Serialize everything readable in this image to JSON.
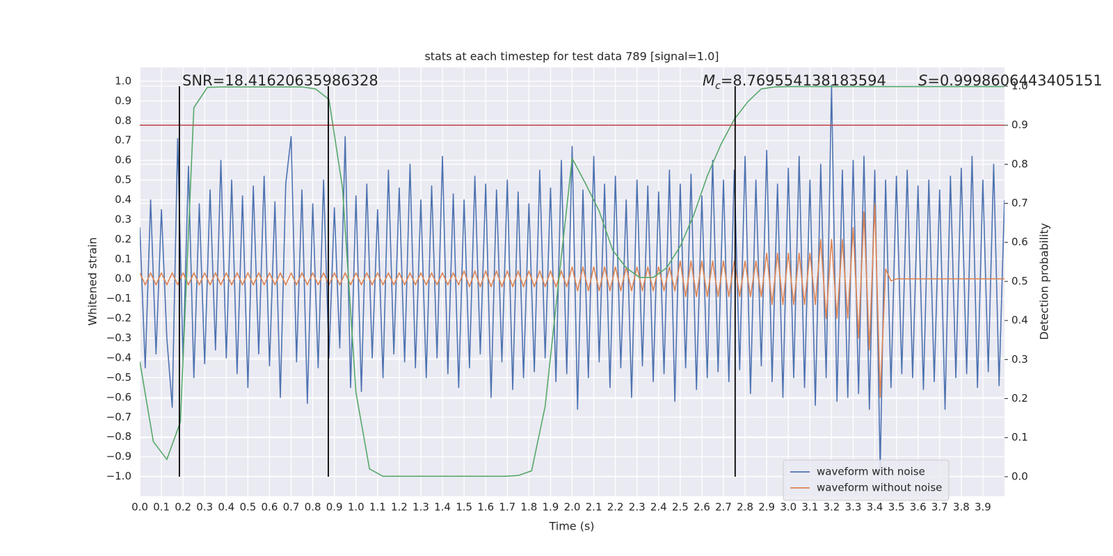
{
  "chart_data": {
    "type": "line",
    "title": "stats at each timestep for test data 789 [signal=1.0]",
    "xlabel": "Time (s)",
    "ylabel": "Whitened strain",
    "y2label": "Detection probability",
    "background": "#eaeaf2",
    "grid": true,
    "legend": "lower right",
    "xlim": [
      0,
      4.0
    ],
    "ylim": [
      -1.1,
      1.07
    ],
    "y2lim": [
      -0.05,
      1.048
    ],
    "xticks": [
      {
        "value": 0,
        "label": "0.0"
      },
      {
        "value": 0.1,
        "label": "0.1"
      },
      {
        "value": 0.2,
        "label": "0.2"
      },
      {
        "value": 0.3,
        "label": "0.3"
      },
      {
        "value": 0.4,
        "label": "0.4"
      },
      {
        "value": 0.5,
        "label": "0.5"
      },
      {
        "value": 0.6,
        "label": "0.6"
      },
      {
        "value": 0.7,
        "label": "0.7"
      },
      {
        "value": 0.8,
        "label": "0.8"
      },
      {
        "value": 0.9,
        "label": "0.9"
      },
      {
        "value": 1.0,
        "label": "1.0"
      },
      {
        "value": 1.1,
        "label": "1.1"
      },
      {
        "value": 1.2,
        "label": "1.2"
      },
      {
        "value": 1.3,
        "label": "1.3"
      },
      {
        "value": 1.4,
        "label": "1.4"
      },
      {
        "value": 1.5,
        "label": "1.5"
      },
      {
        "value": 1.6,
        "label": "1.6"
      },
      {
        "value": 1.7,
        "label": "1.7"
      },
      {
        "value": 1.8,
        "label": "1.8"
      },
      {
        "value": 1.9,
        "label": "1.9"
      },
      {
        "value": 2.0,
        "label": "2.0"
      },
      {
        "value": 2.1,
        "label": "2.1"
      },
      {
        "value": 2.2,
        "label": "2.2"
      },
      {
        "value": 2.3,
        "label": "2.3"
      },
      {
        "value": 2.4,
        "label": "2.4"
      },
      {
        "value": 2.5,
        "label": "2.5"
      },
      {
        "value": 2.6,
        "label": "2.6"
      },
      {
        "value": 2.7,
        "label": "2.7"
      },
      {
        "value": 2.8,
        "label": "2.8"
      },
      {
        "value": 2.9,
        "label": "2.9"
      },
      {
        "value": 3.0,
        "label": "3.0"
      },
      {
        "value": 3.1,
        "label": "3.1"
      },
      {
        "value": 3.2,
        "label": "3.2"
      },
      {
        "value": 3.3,
        "label": "3.3"
      },
      {
        "value": 3.4,
        "label": "3.4"
      },
      {
        "value": 3.5,
        "label": "3.5"
      },
      {
        "value": 3.6,
        "label": "3.6"
      },
      {
        "value": 3.7,
        "label": "3.7"
      },
      {
        "value": 3.8,
        "label": "3.8"
      },
      {
        "value": 3.9,
        "label": "3.9"
      }
    ],
    "yticks": [
      {
        "value": 1.0,
        "label": "1.0"
      },
      {
        "value": 0.9,
        "label": "0.9"
      },
      {
        "value": 0.8,
        "label": "0.8"
      },
      {
        "value": 0.7,
        "label": "0.7"
      },
      {
        "value": 0.6,
        "label": "0.6"
      },
      {
        "value": 0.5,
        "label": "0.5"
      },
      {
        "value": 0.4,
        "label": "0.4"
      },
      {
        "value": 0.3,
        "label": "0.3"
      },
      {
        "value": 0.2,
        "label": "0.2"
      },
      {
        "value": 0.1,
        "label": "0.1"
      },
      {
        "value": 0,
        "label": "0.0"
      },
      {
        "value": -0.1,
        "label": "−0.1"
      },
      {
        "value": -0.2,
        "label": "−0.2"
      },
      {
        "value": -0.3,
        "label": "−0.3"
      },
      {
        "value": -0.4,
        "label": "−0.4"
      },
      {
        "value": -0.5,
        "label": "−0.5"
      },
      {
        "value": -0.6,
        "label": "−0.6"
      },
      {
        "value": -0.7,
        "label": "−0.7"
      },
      {
        "value": -0.8,
        "label": "−0.8"
      },
      {
        "value": -0.9,
        "label": "−0.9"
      },
      {
        "value": -1.0,
        "label": "−1.0"
      }
    ],
    "y2ticks": [
      {
        "value": 1.0,
        "label": "1.0"
      },
      {
        "value": 0.9,
        "label": "0.9"
      },
      {
        "value": 0.8,
        "label": "0.8"
      },
      {
        "value": 0.7,
        "label": "0.7"
      },
      {
        "value": 0.6,
        "label": "0.6"
      },
      {
        "value": 0.5,
        "label": "0.5"
      },
      {
        "value": 0.4,
        "label": "0.4"
      },
      {
        "value": 0.3,
        "label": "0.3"
      },
      {
        "value": 0.2,
        "label": "0.2"
      },
      {
        "value": 0.1,
        "label": "0.1"
      },
      {
        "value": 0,
        "label": "0.0"
      }
    ],
    "x": [
      0,
      0.025,
      0.05,
      0.075,
      0.1,
      0.125,
      0.15,
      0.175,
      0.2,
      0.225,
      0.25,
      0.275,
      0.3,
      0.325,
      0.35,
      0.375,
      0.4,
      0.425,
      0.45,
      0.475,
      0.5,
      0.525,
      0.55,
      0.575,
      0.6,
      0.625,
      0.65,
      0.675,
      0.7,
      0.725,
      0.75,
      0.775,
      0.8,
      0.825,
      0.85,
      0.875,
      0.9,
      0.925,
      0.95,
      0.975,
      1.0,
      1.025,
      1.05,
      1.075,
      1.1,
      1.125,
      1.15,
      1.175,
      1.2,
      1.225,
      1.25,
      1.275,
      1.3,
      1.325,
      1.35,
      1.375,
      1.4,
      1.425,
      1.45,
      1.475,
      1.5,
      1.525,
      1.55,
      1.575,
      1.6,
      1.625,
      1.65,
      1.675,
      1.7,
      1.725,
      1.75,
      1.775,
      1.8,
      1.825,
      1.85,
      1.875,
      1.9,
      1.925,
      1.95,
      1.975,
      2.0,
      2.025,
      2.05,
      2.075,
      2.1,
      2.125,
      2.15,
      2.175,
      2.2,
      2.225,
      2.25,
      2.275,
      2.3,
      2.325,
      2.35,
      2.375,
      2.4,
      2.425,
      2.45,
      2.475,
      2.5,
      2.525,
      2.55,
      2.575,
      2.6,
      2.625,
      2.65,
      2.675,
      2.7,
      2.725,
      2.75,
      2.775,
      2.8,
      2.825,
      2.85,
      2.875,
      2.9,
      2.925,
      2.95,
      2.975,
      3.0,
      3.025,
      3.05,
      3.075,
      3.1,
      3.125,
      3.15,
      3.175,
      3.2,
      3.225,
      3.25,
      3.275,
      3.3,
      3.325,
      3.35,
      3.375,
      3.4,
      3.425,
      3.45,
      3.475,
      3.5,
      3.525,
      3.55,
      3.575,
      3.6,
      3.625,
      3.65,
      3.675,
      3.7,
      3.725,
      3.75,
      3.775,
      3.8,
      3.825,
      3.85,
      3.875,
      3.9,
      3.925,
      3.95,
      3.975,
      4.0
    ],
    "series": [
      {
        "name": "waveform with noise",
        "color": "#4c72b0",
        "axis": "y",
        "values": [
          0.26,
          -0.45,
          0.4,
          -0.38,
          0.35,
          -0.3,
          -0.65,
          0.71,
          -0.41,
          0.57,
          -0.5,
          0.38,
          -0.43,
          0.45,
          -0.36,
          0.6,
          -0.4,
          0.5,
          -0.48,
          0.42,
          -0.55,
          0.47,
          -0.38,
          0.52,
          -0.44,
          0.39,
          -0.6,
          0.48,
          0.72,
          -0.42,
          0.45,
          -0.63,
          0.38,
          -0.45,
          0.5,
          -0.4,
          0.36,
          -0.35,
          0.72,
          -0.55,
          0.42,
          -0.57,
          0.48,
          -0.4,
          0.35,
          -0.5,
          0.55,
          -0.38,
          0.46,
          -0.42,
          0.58,
          -0.45,
          0.4,
          -0.5,
          0.47,
          -0.4,
          0.62,
          -0.48,
          0.43,
          -0.55,
          0.4,
          -0.45,
          0.52,
          -0.38,
          0.48,
          -0.6,
          0.45,
          -0.42,
          0.5,
          -0.56,
          0.44,
          -0.5,
          0.38,
          -0.47,
          0.55,
          -0.4,
          0.46,
          -0.52,
          0.6,
          -0.48,
          0.67,
          -0.66,
          0.45,
          -0.5,
          0.62,
          -0.42,
          0.48,
          -0.55,
          0.52,
          -0.45,
          0.4,
          -0.6,
          0.5,
          -0.44,
          0.47,
          -0.52,
          0.44,
          -0.48,
          0.55,
          -0.62,
          0.48,
          -0.45,
          0.53,
          -0.56,
          0.42,
          -0.5,
          0.6,
          -0.47,
          0.5,
          -0.52,
          0.55,
          -0.46,
          0.62,
          -0.58,
          0.5,
          -0.44,
          0.65,
          -0.52,
          0.48,
          -0.6,
          0.56,
          -0.5,
          0.62,
          -0.55,
          0.5,
          -0.64,
          0.58,
          -0.5,
          0.98,
          -0.62,
          0.55,
          -0.6,
          0.6,
          -0.58,
          0.62,
          -0.66,
          0.55,
          -0.97,
          0.5,
          -0.55,
          0.52,
          -0.48,
          0.55,
          -0.5,
          0.47,
          -0.56,
          0.5,
          -0.52,
          0.45,
          -0.66,
          0.52,
          -0.5,
          0.56,
          -0.48,
          0.62,
          -0.55,
          0.5,
          -0.47,
          0.58,
          -0.54,
          0.4
        ]
      },
      {
        "name": "waveform without noise",
        "color": "#dd8452",
        "axis": "y",
        "values": [
          0.03,
          -0.03,
          0.03,
          -0.03,
          0.03,
          -0.03,
          0.03,
          -0.03,
          0.03,
          -0.03,
          0.03,
          -0.03,
          0.03,
          -0.03,
          0.03,
          -0.03,
          0.03,
          -0.03,
          0.03,
          -0.03,
          0.03,
          -0.03,
          0.03,
          -0.03,
          0.03,
          -0.03,
          0.03,
          -0.03,
          0.03,
          -0.03,
          0.03,
          -0.03,
          0.03,
          -0.03,
          0.03,
          -0.03,
          0.03,
          -0.03,
          0.03,
          -0.03,
          0.03,
          -0.03,
          0.03,
          -0.03,
          0.03,
          -0.03,
          0.03,
          -0.03,
          0.03,
          -0.03,
          0.03,
          -0.03,
          0.03,
          -0.03,
          0.03,
          -0.03,
          0.03,
          -0.03,
          0.03,
          -0.03,
          0.04,
          -0.04,
          0.04,
          -0.04,
          0.04,
          -0.04,
          0.04,
          -0.04,
          0.04,
          -0.04,
          0.04,
          -0.04,
          0.04,
          -0.04,
          0.04,
          -0.04,
          0.04,
          -0.04,
          0.04,
          -0.04,
          0.06,
          -0.06,
          0.06,
          -0.06,
          0.06,
          -0.06,
          0.06,
          -0.06,
          0.06,
          -0.06,
          0.06,
          -0.06,
          0.06,
          -0.06,
          0.06,
          -0.06,
          0.06,
          -0.06,
          0.06,
          -0.06,
          0.09,
          -0.09,
          0.09,
          -0.09,
          0.09,
          -0.09,
          0.09,
          -0.09,
          0.09,
          -0.09,
          0.09,
          -0.09,
          0.09,
          -0.09,
          0.09,
          -0.09,
          0.13,
          -0.13,
          0.13,
          -0.13,
          0.13,
          -0.13,
          0.13,
          -0.13,
          0.13,
          -0.13,
          0.2,
          -0.2,
          0.2,
          -0.2,
          0.2,
          -0.2,
          0.26,
          -0.3,
          0.34,
          -0.36,
          0.38,
          -0.6,
          0.05,
          -0.01,
          0,
          0,
          0,
          0,
          0,
          0,
          0,
          0,
          0,
          0,
          0,
          0,
          0,
          0,
          0,
          0,
          0,
          0,
          0,
          0,
          0
        ]
      },
      {
        "color": "#55a868",
        "axis": "y2",
        "x": [
          0,
          0.0625,
          0.125,
          0.1875,
          0.25,
          0.3125,
          0.375,
          0.4375,
          0.5,
          0.5625,
          0.625,
          0.6875,
          0.75,
          0.8125,
          0.875,
          0.9375,
          1.0,
          1.0625,
          1.125,
          1.1875,
          1.25,
          1.3125,
          1.375,
          1.4375,
          1.5,
          1.5625,
          1.625,
          1.6875,
          1.75,
          1.8125,
          1.875,
          1.9375,
          2.0,
          2.0625,
          2.125,
          2.1875,
          2.25,
          2.3125,
          2.375,
          2.4375,
          2.5,
          2.5625,
          2.625,
          2.6875,
          2.75,
          2.8125,
          2.875,
          2.9375,
          3.0,
          3.0625,
          3.125,
          3.1875,
          3.25,
          3.3125,
          3.375,
          3.4375,
          3.5,
          3.5625,
          3.625,
          3.6875,
          3.75,
          3.8125,
          3.875,
          3.9375,
          4.0
        ],
        "values": [
          0.295,
          0.09,
          0.044,
          0.14,
          0.945,
          0.997,
          0.998,
          0.998,
          0.998,
          0.998,
          0.998,
          0.998,
          0.998,
          0.993,
          0.966,
          0.74,
          0.215,
          0.02,
          0.001,
          0.001,
          0.001,
          0.001,
          0.001,
          0.001,
          0.001,
          0.001,
          0.001,
          0.001,
          0.003,
          0.015,
          0.18,
          0.5,
          0.815,
          0.75,
          0.68,
          0.58,
          0.535,
          0.51,
          0.51,
          0.535,
          0.59,
          0.67,
          0.77,
          0.85,
          0.915,
          0.96,
          0.993,
          0.998,
          0.999,
          0.999,
          0.999,
          0.999,
          0.999,
          0.999,
          0.999,
          0.999,
          0.999,
          0.999,
          0.999,
          0.999,
          0.999,
          0.999,
          0.999,
          0.999,
          0.999
        ]
      }
    ],
    "hline": {
      "value": 0.9,
      "axis": "y2",
      "color": "#c44e52"
    },
    "vlines": {
      "x": [
        0.183,
        0.872,
        2.754
      ],
      "ymin": 0,
      "ymax": 1,
      "axis": "y2",
      "color": "#000000"
    },
    "annotations": [
      {
        "text": "SNR=18.41620635986328"
      },
      {
        "symbol": "M",
        "subscript": "c",
        "text": "=8.769554138183594"
      },
      {
        "symbol": "S",
        "text": "=0.9998606443405151"
      }
    ]
  }
}
